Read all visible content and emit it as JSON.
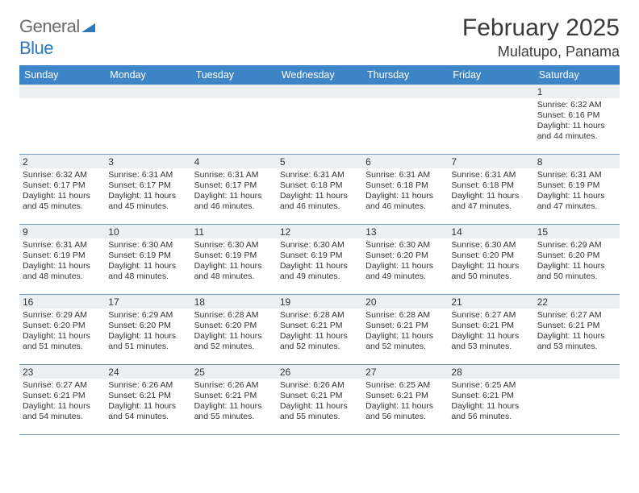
{
  "brand": {
    "word1": "General",
    "word2": "Blue"
  },
  "title": "February 2025",
  "location": "Mulatupo, Panama",
  "colors": {
    "header_bg": "#3d85c6",
    "header_text": "#ffffff",
    "daynum_bg": "#eceff1",
    "rule": "#7a9bb8",
    "brand_blue": "#2f77bb",
    "brand_gray": "#6a6a6a"
  },
  "dow": [
    "Sunday",
    "Monday",
    "Tuesday",
    "Wednesday",
    "Thursday",
    "Friday",
    "Saturday"
  ],
  "weeks": [
    [
      {
        "n": "",
        "lines": []
      },
      {
        "n": "",
        "lines": []
      },
      {
        "n": "",
        "lines": []
      },
      {
        "n": "",
        "lines": []
      },
      {
        "n": "",
        "lines": []
      },
      {
        "n": "",
        "lines": []
      },
      {
        "n": "1",
        "lines": [
          "Sunrise: 6:32 AM",
          "Sunset: 6:16 PM",
          "Daylight: 11 hours and 44 minutes."
        ]
      }
    ],
    [
      {
        "n": "2",
        "lines": [
          "Sunrise: 6:32 AM",
          "Sunset: 6:17 PM",
          "Daylight: 11 hours and 45 minutes."
        ]
      },
      {
        "n": "3",
        "lines": [
          "Sunrise: 6:31 AM",
          "Sunset: 6:17 PM",
          "Daylight: 11 hours and 45 minutes."
        ]
      },
      {
        "n": "4",
        "lines": [
          "Sunrise: 6:31 AM",
          "Sunset: 6:17 PM",
          "Daylight: 11 hours and 46 minutes."
        ]
      },
      {
        "n": "5",
        "lines": [
          "Sunrise: 6:31 AM",
          "Sunset: 6:18 PM",
          "Daylight: 11 hours and 46 minutes."
        ]
      },
      {
        "n": "6",
        "lines": [
          "Sunrise: 6:31 AM",
          "Sunset: 6:18 PM",
          "Daylight: 11 hours and 46 minutes."
        ]
      },
      {
        "n": "7",
        "lines": [
          "Sunrise: 6:31 AM",
          "Sunset: 6:18 PM",
          "Daylight: 11 hours and 47 minutes."
        ]
      },
      {
        "n": "8",
        "lines": [
          "Sunrise: 6:31 AM",
          "Sunset: 6:19 PM",
          "Daylight: 11 hours and 47 minutes."
        ]
      }
    ],
    [
      {
        "n": "9",
        "lines": [
          "Sunrise: 6:31 AM",
          "Sunset: 6:19 PM",
          "Daylight: 11 hours and 48 minutes."
        ]
      },
      {
        "n": "10",
        "lines": [
          "Sunrise: 6:30 AM",
          "Sunset: 6:19 PM",
          "Daylight: 11 hours and 48 minutes."
        ]
      },
      {
        "n": "11",
        "lines": [
          "Sunrise: 6:30 AM",
          "Sunset: 6:19 PM",
          "Daylight: 11 hours and 48 minutes."
        ]
      },
      {
        "n": "12",
        "lines": [
          "Sunrise: 6:30 AM",
          "Sunset: 6:19 PM",
          "Daylight: 11 hours and 49 minutes."
        ]
      },
      {
        "n": "13",
        "lines": [
          "Sunrise: 6:30 AM",
          "Sunset: 6:20 PM",
          "Daylight: 11 hours and 49 minutes."
        ]
      },
      {
        "n": "14",
        "lines": [
          "Sunrise: 6:30 AM",
          "Sunset: 6:20 PM",
          "Daylight: 11 hours and 50 minutes."
        ]
      },
      {
        "n": "15",
        "lines": [
          "Sunrise: 6:29 AM",
          "Sunset: 6:20 PM",
          "Daylight: 11 hours and 50 minutes."
        ]
      }
    ],
    [
      {
        "n": "16",
        "lines": [
          "Sunrise: 6:29 AM",
          "Sunset: 6:20 PM",
          "Daylight: 11 hours and 51 minutes."
        ]
      },
      {
        "n": "17",
        "lines": [
          "Sunrise: 6:29 AM",
          "Sunset: 6:20 PM",
          "Daylight: 11 hours and 51 minutes."
        ]
      },
      {
        "n": "18",
        "lines": [
          "Sunrise: 6:28 AM",
          "Sunset: 6:20 PM",
          "Daylight: 11 hours and 52 minutes."
        ]
      },
      {
        "n": "19",
        "lines": [
          "Sunrise: 6:28 AM",
          "Sunset: 6:21 PM",
          "Daylight: 11 hours and 52 minutes."
        ]
      },
      {
        "n": "20",
        "lines": [
          "Sunrise: 6:28 AM",
          "Sunset: 6:21 PM",
          "Daylight: 11 hours and 52 minutes."
        ]
      },
      {
        "n": "21",
        "lines": [
          "Sunrise: 6:27 AM",
          "Sunset: 6:21 PM",
          "Daylight: 11 hours and 53 minutes."
        ]
      },
      {
        "n": "22",
        "lines": [
          "Sunrise: 6:27 AM",
          "Sunset: 6:21 PM",
          "Daylight: 11 hours and 53 minutes."
        ]
      }
    ],
    [
      {
        "n": "23",
        "lines": [
          "Sunrise: 6:27 AM",
          "Sunset: 6:21 PM",
          "Daylight: 11 hours and 54 minutes."
        ]
      },
      {
        "n": "24",
        "lines": [
          "Sunrise: 6:26 AM",
          "Sunset: 6:21 PM",
          "Daylight: 11 hours and 54 minutes."
        ]
      },
      {
        "n": "25",
        "lines": [
          "Sunrise: 6:26 AM",
          "Sunset: 6:21 PM",
          "Daylight: 11 hours and 55 minutes."
        ]
      },
      {
        "n": "26",
        "lines": [
          "Sunrise: 6:26 AM",
          "Sunset: 6:21 PM",
          "Daylight: 11 hours and 55 minutes."
        ]
      },
      {
        "n": "27",
        "lines": [
          "Sunrise: 6:25 AM",
          "Sunset: 6:21 PM",
          "Daylight: 11 hours and 56 minutes."
        ]
      },
      {
        "n": "28",
        "lines": [
          "Sunrise: 6:25 AM",
          "Sunset: 6:21 PM",
          "Daylight: 11 hours and 56 minutes."
        ]
      },
      {
        "n": "",
        "lines": []
      }
    ]
  ]
}
